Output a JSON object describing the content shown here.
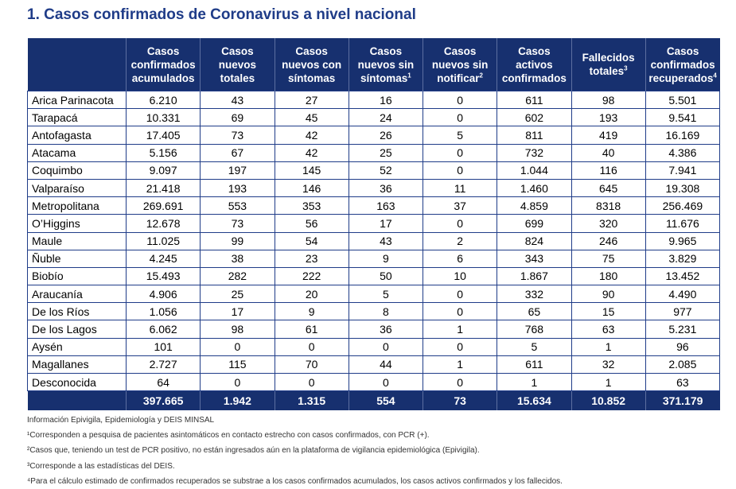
{
  "title": "1. Casos confirmados de Coronavirus a nivel nacional",
  "headers": [
    {
      "text": "",
      "sup": ""
    },
    {
      "text": "Casos confirmados acumulados",
      "sup": ""
    },
    {
      "text": "Casos nuevos totales",
      "sup": ""
    },
    {
      "text": "Casos nuevos con síntomas",
      "sup": ""
    },
    {
      "text": "Casos nuevos sin síntomas",
      "sup": "1"
    },
    {
      "text": "Casos nuevos sin notificar",
      "sup": "2"
    },
    {
      "text": "Casos activos confirmados",
      "sup": ""
    },
    {
      "text": "Fallecidos totales",
      "sup": "3"
    },
    {
      "text": "Casos confirmados recuperados",
      "sup": "4"
    }
  ],
  "rows": [
    [
      "Arica Parinacota",
      "6.210",
      "43",
      "27",
      "16",
      "0",
      "611",
      "98",
      "5.501"
    ],
    [
      "Tarapacá",
      "10.331",
      "69",
      "45",
      "24",
      "0",
      "602",
      "193",
      "9.541"
    ],
    [
      "Antofagasta",
      "17.405",
      "73",
      "42",
      "26",
      "5",
      "811",
      "419",
      "16.169"
    ],
    [
      "Atacama",
      "5.156",
      "67",
      "42",
      "25",
      "0",
      "732",
      "40",
      "4.386"
    ],
    [
      "Coquimbo",
      "9.097",
      "197",
      "145",
      "52",
      "0",
      "1.044",
      "116",
      "7.941"
    ],
    [
      "Valparaíso",
      "21.418",
      "193",
      "146",
      "36",
      "11",
      "1.460",
      "645",
      "19.308"
    ],
    [
      "Metropolitana",
      "269.691",
      "553",
      "353",
      "163",
      "37",
      "4.859",
      "8318",
      "256.469"
    ],
    [
      "O’Higgins",
      "12.678",
      "73",
      "56",
      "17",
      "0",
      "699",
      "320",
      "11.676"
    ],
    [
      "Maule",
      "11.025",
      "99",
      "54",
      "43",
      "2",
      "824",
      "246",
      "9.965"
    ],
    [
      "Ñuble",
      "4.245",
      "38",
      "23",
      "9",
      "6",
      "343",
      "75",
      "3.829"
    ],
    [
      "Biobío",
      "15.493",
      "282",
      "222",
      "50",
      "10",
      "1.867",
      "180",
      "13.452"
    ],
    [
      "Araucanía",
      "4.906",
      "25",
      "20",
      "5",
      "0",
      "332",
      "90",
      "4.490"
    ],
    [
      "De los Ríos",
      "1.056",
      "17",
      "9",
      "8",
      "0",
      "65",
      "15",
      "977"
    ],
    [
      "De los Lagos",
      "6.062",
      "98",
      "61",
      "36",
      "1",
      "768",
      "63",
      "5.231"
    ],
    [
      "Aysén",
      "101",
      "0",
      "0",
      "0",
      "0",
      "5",
      "1",
      "96"
    ],
    [
      "Magallanes",
      "2.727",
      "115",
      "70",
      "44",
      "1",
      "611",
      "32",
      "2.085"
    ],
    [
      "Desconocida",
      "64",
      "0",
      "0",
      "0",
      "0",
      "1",
      "1",
      "63"
    ]
  ],
  "totals": [
    "",
    "397.665",
    "1.942",
    "1.315",
    "554",
    "73",
    "15.634",
    "10.852",
    "371.179"
  ],
  "notes": [
    "Información Epivigila, Epidemiología y DEIS MINSAL",
    "¹Corresponden a pesquisa de pacientes asintomáticos en contacto estrecho con casos confirmados, con PCR (+).",
    "²Casos que, teniendo un test de PCR positivo, no están ingresados aún en la plataforma de vigilancia epidemiológica (Epivigila).",
    "³Corresponde a las estadísticas del DEIS.",
    "⁴Para el cálculo estimado de confirmados recuperados se substrae a los casos confirmados acumulados, los casos activos confirmados y los fallecidos."
  ]
}
